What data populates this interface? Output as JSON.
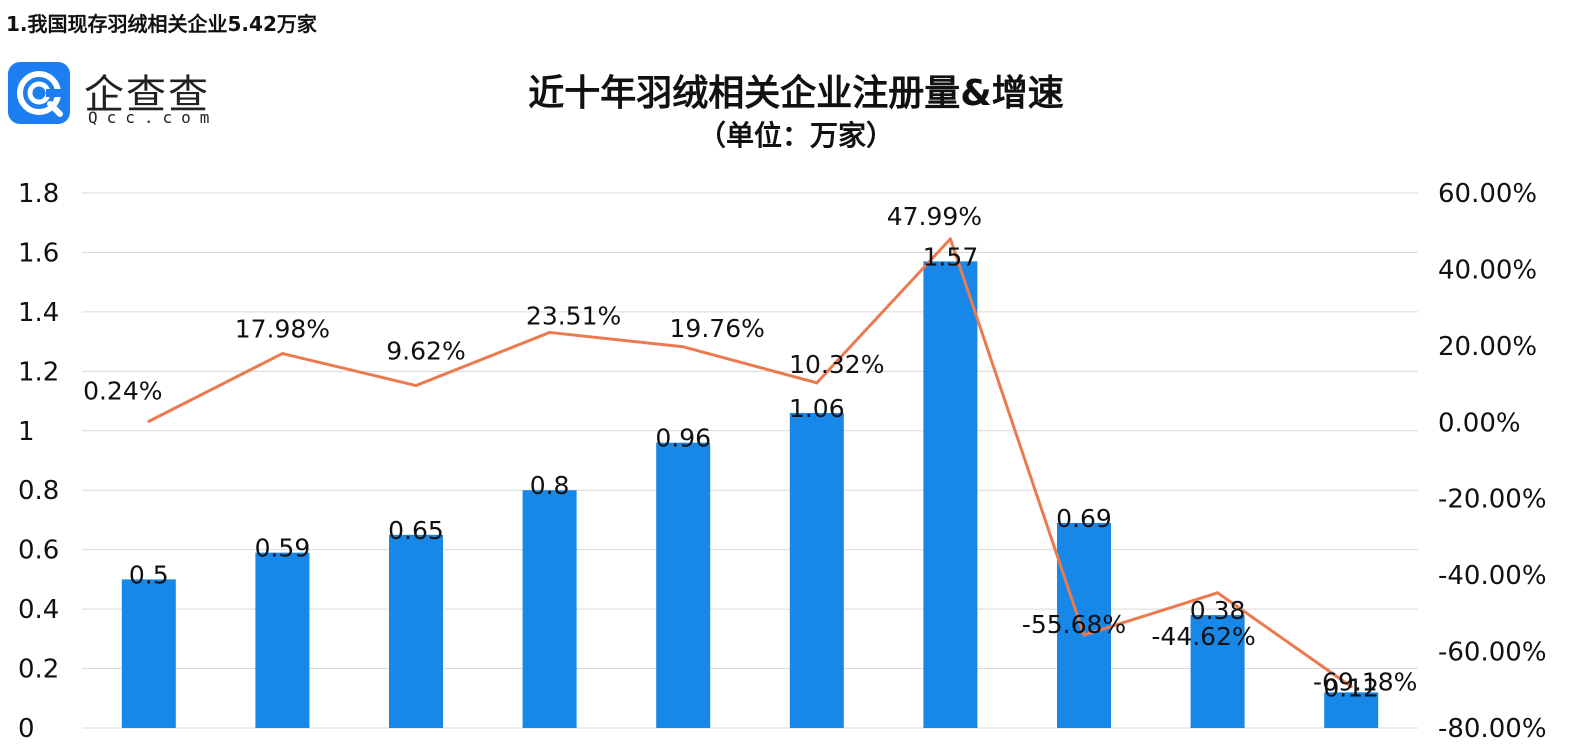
{
  "heading": "1.我国现存羽绒相关企业5.42万家",
  "logo": {
    "name": "企查查",
    "sub": "Qcc.com"
  },
  "colors": {
    "bar": "#1787e8",
    "line": "#ec7a4f",
    "grid": "#d9d9d9"
  },
  "chart_data": {
    "type": "bar",
    "title": "近十年羽绒相关企业注册量&增速",
    "subtitle": "（单位：万家）",
    "categories": [
      "",
      "",
      "",
      "",
      "",
      "",
      "",
      "",
      "",
      ""
    ],
    "series": [
      {
        "name": "",
        "type": "bar",
        "axis": "left",
        "values": [
          0.5,
          0.59,
          0.65,
          0.8,
          0.96,
          1.06,
          1.57,
          0.69,
          0.38,
          0.12
        ],
        "labels": [
          "0.5",
          "0.59",
          "0.65",
          "0.8",
          "0.96",
          "1.06",
          "1.57",
          "0.69",
          "0.38",
          "0.12"
        ]
      },
      {
        "name": "",
        "type": "line",
        "axis": "right",
        "values": [
          0.24,
          17.98,
          9.62,
          23.51,
          19.76,
          10.32,
          47.99,
          -55.68,
          -44.62,
          -69.18
        ],
        "labels": [
          "0.24%",
          "17.98%",
          "9.62%",
          "23.51%",
          "19.76%",
          "10.32%",
          "47.99%",
          "-55.68%",
          "-44.62%",
          "-69.18%"
        ]
      }
    ],
    "y_left": {
      "range": [
        0,
        1.8
      ],
      "ticks": [
        "1.8",
        "1.6",
        "1.4",
        "1.2",
        "1",
        "0.8",
        "0.6",
        "0.4",
        "0.2",
        "0"
      ]
    },
    "y_right": {
      "range": [
        -80,
        60
      ],
      "ticks": [
        "60.00%",
        "40.00%",
        "20.00%",
        "0.00%",
        "-20.00%",
        "-40.00%",
        "-60.00%",
        "-80.00%"
      ]
    },
    "grid": true
  }
}
